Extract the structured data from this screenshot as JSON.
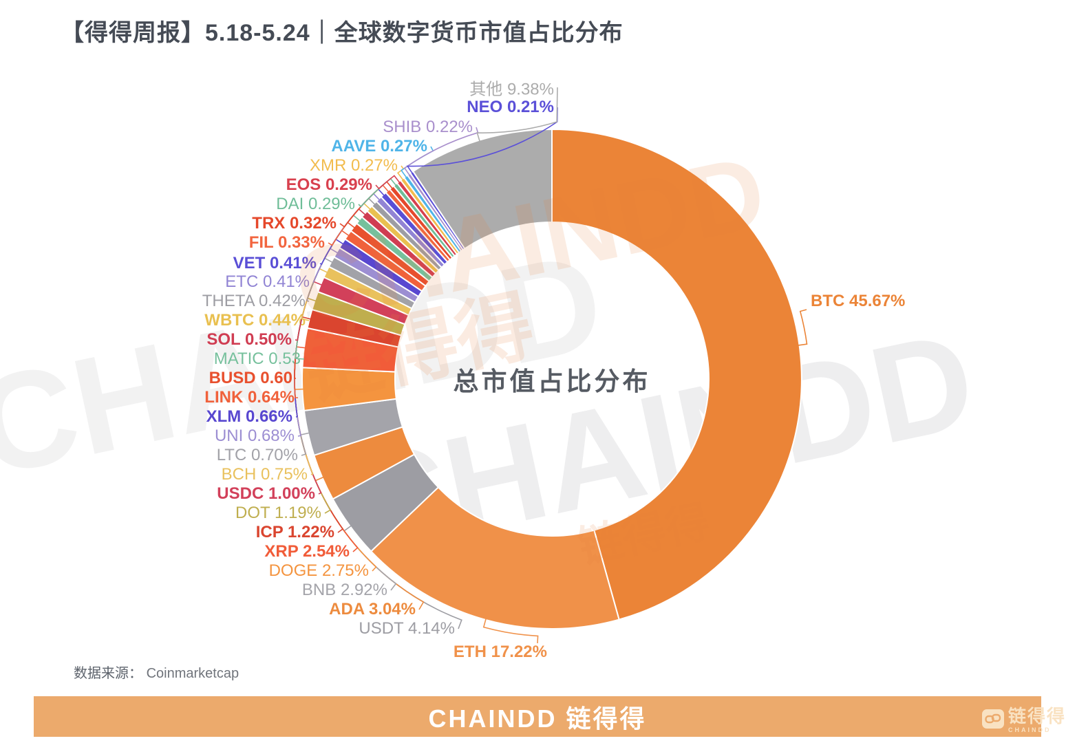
{
  "header": {
    "title": "【得得周报】5.18-5.24｜全球数字货币市值占比分布"
  },
  "chart_data": {
    "type": "pie",
    "donut": true,
    "title": "总市值占比分布",
    "unit": "%",
    "start_angle_deg": 0,
    "direction": "clockwise",
    "slices": [
      {
        "name": "BTC",
        "value": 45.67,
        "label": "BTC 45.67%",
        "color": "#EB8437",
        "bold": true
      },
      {
        "name": "ETH",
        "value": 17.22,
        "label": "ETH 17.22%",
        "color": "#F09149",
        "bold": true
      },
      {
        "name": "USDT",
        "value": 4.14,
        "label": "USDT 4.14%",
        "color": "#9D9DA3",
        "bold": false
      },
      {
        "name": "ADA",
        "value": 3.04,
        "label": "ADA 3.04%",
        "color": "#ED8B3E",
        "bold": true
      },
      {
        "name": "BNB",
        "value": 2.92,
        "label": "BNB 2.92%",
        "color": "#A4A4AA",
        "bold": false
      },
      {
        "name": "DOGE",
        "value": 2.75,
        "label": "DOGE 2.75%",
        "color": "#F4943F",
        "bold": false
      },
      {
        "name": "XRP",
        "value": 2.54,
        "label": "XRP 2.54%",
        "color": "#F15C39",
        "bold": true
      },
      {
        "name": "ICP",
        "value": 1.22,
        "label": "ICP 1.22%",
        "color": "#DA452F",
        "bold": true
      },
      {
        "name": "DOT",
        "value": 1.19,
        "label": "DOT 1.19%",
        "color": "#BFAE4E",
        "bold": false
      },
      {
        "name": "USDC",
        "value": 1.0,
        "label": "USDC 1.00%",
        "color": "#D2405A",
        "bold": true
      },
      {
        "name": "BCH",
        "value": 0.75,
        "label": "BCH 0.75%",
        "color": "#E9C15D",
        "bold": false
      },
      {
        "name": "LTC",
        "value": 0.7,
        "label": "LTC 0.70%",
        "color": "#A2A2A8",
        "bold": false
      },
      {
        "name": "UNI",
        "value": 0.68,
        "label": "UNI 0.68%",
        "color": "#9C8ED2",
        "bold": false
      },
      {
        "name": "XLM",
        "value": 0.66,
        "label": "XLM 0.66%",
        "color": "#5847D0",
        "bold": true
      },
      {
        "name": "LINK",
        "value": 0.64,
        "label": "LINK 0.64%",
        "color": "#F0613B",
        "bold": true
      },
      {
        "name": "BUSD",
        "value": 0.6,
        "label": "BUSD 0.60",
        "color": "#E8502E",
        "bold": true
      },
      {
        "name": "MATIC",
        "value": 0.53,
        "label": "MATIC 0.53",
        "color": "#76C09C",
        "bold": false
      },
      {
        "name": "SOL",
        "value": 0.5,
        "label": "SOL 0.50%",
        "color": "#D03D52",
        "bold": true
      },
      {
        "name": "WBTC",
        "value": 0.44,
        "label": "WBTC 0.44%",
        "color": "#E9C050",
        "bold": true
      },
      {
        "name": "THETA",
        "value": 0.42,
        "label": "THETA 0.42%",
        "color": "#9D9DA3",
        "bold": false
      },
      {
        "name": "ETC",
        "value": 0.41,
        "label": "ETC 0.41%",
        "color": "#9184D4",
        "bold": false
      },
      {
        "name": "VET",
        "value": 0.41,
        "label": "VET 0.41%",
        "color": "#5A4FD6",
        "bold": true
      },
      {
        "name": "FIL",
        "value": 0.33,
        "label": "FIL 0.33%",
        "color": "#F2653F",
        "bold": true
      },
      {
        "name": "TRX",
        "value": 0.32,
        "label": "TRX 0.32%",
        "color": "#E5482B",
        "bold": true
      },
      {
        "name": "DAI",
        "value": 0.29,
        "label": "DAI 0.29%",
        "color": "#6FBD98",
        "bold": false
      },
      {
        "name": "EOS",
        "value": 0.29,
        "label": "EOS 0.29%",
        "color": "#D8404E",
        "bold": true
      },
      {
        "name": "XMR",
        "value": 0.27,
        "label": "XMR 0.27%",
        "color": "#F2BC4E",
        "bold": false
      },
      {
        "name": "AAVE",
        "value": 0.27,
        "label": "AAVE 0.27%",
        "color": "#4FB4E8",
        "bold": true
      },
      {
        "name": "SHIB",
        "value": 0.22,
        "label": "SHIB 0.22%",
        "color": "#A98FCC",
        "bold": false
      },
      {
        "name": "NEO",
        "value": 0.21,
        "label": "NEO 0.21%",
        "color": "#5B50D8",
        "bold": true
      },
      {
        "name": "其他",
        "value": 9.38,
        "label": "其他 9.38%",
        "color": "#ACACAC",
        "bold": false
      }
    ]
  },
  "source": {
    "prefix": "数据来源：",
    "value": "Coinmarketcap"
  },
  "watermarks": {
    "en": "CHAINDD",
    "cn": "链得得"
  },
  "footer": {
    "banner_text": "CHAINDD 链得得",
    "logo_cn": "链得得",
    "logo_en": "CHAINDD"
  },
  "colors": {
    "banner": "#ecaa6c",
    "title_text": "#454b55",
    "center_text": "#565b63"
  }
}
